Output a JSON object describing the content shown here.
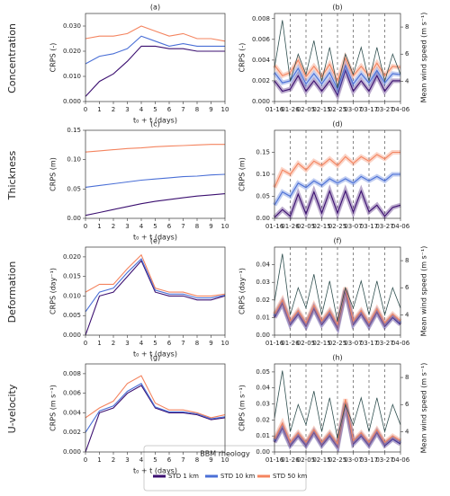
{
  "row_labels": [
    "Concentration",
    "Thickness",
    "Deformation",
    "U-velocity"
  ],
  "legend_title": "BBM rheology",
  "chart_data": [
    {
      "type": "line",
      "title": "(a)",
      "xlabel": "t₀ + t (days)",
      "ylabel": "CRPS (-)",
      "x": [
        0,
        1,
        2,
        3,
        4,
        5,
        6,
        7,
        8,
        9,
        10
      ],
      "xlim": [
        0,
        10
      ],
      "xticks": [
        0,
        1,
        2,
        3,
        4,
        5,
        6,
        7,
        8,
        9,
        10
      ],
      "ylim": [
        0,
        0.035
      ],
      "yticks": [
        {
          "value": 0,
          "label": "0.000"
        },
        {
          "value": 0.01,
          "label": "0.010"
        },
        {
          "value": 0.02,
          "label": "0.020"
        },
        {
          "value": 0.03,
          "label": "0.030"
        }
      ],
      "series": [
        {
          "name": "STD 1 km",
          "color": "#3b0f70",
          "values": [
            0.002,
            0.008,
            0.011,
            0.016,
            0.022,
            0.022,
            0.021,
            0.021,
            0.02,
            0.02,
            0.02
          ]
        },
        {
          "name": "STD 10 km",
          "color": "#4a6fd6",
          "values": [
            0.015,
            0.018,
            0.019,
            0.021,
            0.026,
            0.024,
            0.022,
            0.023,
            0.022,
            0.022,
            0.022
          ]
        },
        {
          "name": "STD 50 km",
          "color": "#f4845f",
          "values": [
            0.025,
            0.026,
            0.026,
            0.027,
            0.03,
            0.028,
            0.026,
            0.027,
            0.025,
            0.025,
            0.024
          ]
        }
      ]
    },
    {
      "type": "line",
      "title": "(b)",
      "ylabel": "CRPS (-)",
      "y2label": "Mean wind speed (m s⁻¹)",
      "x": [
        "01-16",
        "01-21",
        "01-26",
        "01-31",
        "02-05",
        "02-10",
        "02-15",
        "02-20",
        "02-25",
        "03-02",
        "03-07",
        "03-12",
        "03-17",
        "03-22",
        "03-27",
        "04-01",
        "04-06"
      ],
      "xticks": [
        "01-16",
        "01-26",
        "02-05",
        "02-15",
        "02-25",
        "03-07",
        "03-17",
        "03-27",
        "04-06"
      ],
      "ylim": [
        0,
        0.0085
      ],
      "yticks": [
        {
          "value": 0,
          "label": "0.000"
        },
        {
          "value": 0.002,
          "label": "0.002"
        },
        {
          "value": 0.004,
          "label": "0.004"
        },
        {
          "value": 0.006,
          "label": "0.006"
        },
        {
          "value": 0.008,
          "label": "0.008"
        }
      ],
      "y2lim": [
        2.5,
        9
      ],
      "y2ticks": [
        4,
        6,
        8
      ],
      "series": [
        {
          "name": "STD 1 km",
          "color": "#3b0f70",
          "values": [
            0.002,
            0.001,
            0.0012,
            0.0025,
            0.001,
            0.002,
            0.001,
            0.002,
            0.0006,
            0.003,
            0.001,
            0.002,
            0.001,
            0.0025,
            0.001,
            0.002,
            0.002
          ]
        },
        {
          "name": "STD 10 km",
          "color": "#4a6fd6",
          "values": [
            0.0028,
            0.0018,
            0.002,
            0.0032,
            0.0017,
            0.0027,
            0.0017,
            0.0028,
            0.0012,
            0.0035,
            0.0017,
            0.0027,
            0.0018,
            0.003,
            0.0018,
            0.0027,
            0.0026
          ]
        },
        {
          "name": "STD 50 km",
          "color": "#f4845f",
          "values": [
            0.0035,
            0.0025,
            0.0028,
            0.004,
            0.0024,
            0.0034,
            0.0024,
            0.0036,
            0.002,
            0.0042,
            0.0025,
            0.0034,
            0.0025,
            0.0037,
            0.0025,
            0.0034,
            0.0033
          ]
        },
        {
          "color": "#2f4f4f",
          "axis": "y2",
          "values": [
            5,
            8.5,
            4,
            6,
            4.5,
            7,
            4,
            6.5,
            3.5,
            6,
            4.5,
            6.5,
            4,
            6.5,
            4,
            6,
            4.5
          ]
        }
      ]
    },
    {
      "type": "line",
      "title": "(c)",
      "xlabel": "t₀ + t (days)",
      "ylabel": "CRPS (m)",
      "x": [
        0,
        1,
        2,
        3,
        4,
        5,
        6,
        7,
        8,
        9,
        10
      ],
      "xlim": [
        0,
        10
      ],
      "xticks": [
        0,
        1,
        2,
        3,
        4,
        5,
        6,
        7,
        8,
        9,
        10
      ],
      "ylim": [
        0,
        0.15
      ],
      "yticks": [
        {
          "value": 0,
          "label": "0.00"
        },
        {
          "value": 0.05,
          "label": "0.05"
        },
        {
          "value": 0.1,
          "label": "0.10"
        },
        {
          "value": 0.15,
          "label": "0.15"
        }
      ],
      "series": [
        {
          "name": "STD 1 km",
          "color": "#3b0f70",
          "values": [
            0.005,
            0.01,
            0.015,
            0.02,
            0.025,
            0.029,
            0.032,
            0.035,
            0.038,
            0.04,
            0.042
          ]
        },
        {
          "name": "STD 10 km",
          "color": "#4a6fd6",
          "values": [
            0.053,
            0.056,
            0.059,
            0.062,
            0.065,
            0.067,
            0.069,
            0.071,
            0.072,
            0.074,
            0.075
          ]
        },
        {
          "name": "STD 50 km",
          "color": "#f4845f",
          "values": [
            0.113,
            0.115,
            0.117,
            0.119,
            0.12,
            0.122,
            0.123,
            0.124,
            0.125,
            0.126,
            0.126
          ]
        }
      ]
    },
    {
      "type": "line",
      "title": "(d)",
      "ylabel": "CRPS (m)",
      "x": [
        "01-16",
        "01-21",
        "01-26",
        "01-31",
        "02-05",
        "02-10",
        "02-15",
        "02-20",
        "02-25",
        "03-02",
        "03-07",
        "03-12",
        "03-17",
        "03-22",
        "03-27",
        "04-01",
        "04-06"
      ],
      "xticks": [
        "01-16",
        "01-26",
        "02-05",
        "02-15",
        "02-25",
        "03-07",
        "03-17",
        "03-27",
        "04-06"
      ],
      "ylim": [
        0,
        0.2
      ],
      "yticks": [
        {
          "value": 0,
          "label": "0.00"
        },
        {
          "value": 0.05,
          "label": "0.05"
        },
        {
          "value": 0.1,
          "label": "0.10"
        },
        {
          "value": 0.15,
          "label": "0.15"
        }
      ],
      "series": [
        {
          "name": "STD 1 km",
          "color": "#3b0f70",
          "values": [
            0.002,
            0.02,
            0.005,
            0.055,
            0.01,
            0.06,
            0.012,
            0.062,
            0.012,
            0.062,
            0.014,
            0.062,
            0.015,
            0.03,
            0.005,
            0.025,
            0.03
          ]
        },
        {
          "name": "STD 10 km",
          "color": "#4a6fd6",
          "values": [
            0.03,
            0.06,
            0.05,
            0.08,
            0.07,
            0.085,
            0.075,
            0.09,
            0.08,
            0.09,
            0.08,
            0.095,
            0.085,
            0.095,
            0.085,
            0.1,
            0.1
          ]
        },
        {
          "name": "STD 50 km",
          "color": "#f4845f",
          "values": [
            0.07,
            0.11,
            0.1,
            0.125,
            0.11,
            0.13,
            0.12,
            0.135,
            0.12,
            0.14,
            0.125,
            0.14,
            0.13,
            0.145,
            0.135,
            0.15,
            0.15
          ]
        }
      ]
    },
    {
      "type": "line",
      "title": "(e)",
      "xlabel": "t₀ + t (days)",
      "ylabel": "CRPS (day⁻¹)",
      "x": [
        0,
        1,
        2,
        3,
        4,
        5,
        6,
        7,
        8,
        9,
        10
      ],
      "xlim": [
        0,
        10
      ],
      "xticks": [
        0,
        1,
        2,
        3,
        4,
        5,
        6,
        7,
        8,
        9,
        10
      ],
      "ylim": [
        0,
        0.0225
      ],
      "yticks": [
        {
          "value": 0,
          "label": "0.000"
        },
        {
          "value": 0.005,
          "label": "0.005"
        },
        {
          "value": 0.01,
          "label": "0.010"
        },
        {
          "value": 0.015,
          "label": "0.015"
        },
        {
          "value": 0.02,
          "label": "0.020"
        }
      ],
      "series": [
        {
          "name": "STD 1 km",
          "color": "#3b0f70",
          "values": [
            0,
            0.01,
            0.011,
            0.015,
            0.019,
            0.011,
            0.01,
            0.01,
            0.009,
            0.009,
            0.01
          ]
        },
        {
          "name": "STD 10 km",
          "color": "#4a6fd6",
          "values": [
            0.006,
            0.011,
            0.012,
            0.016,
            0.0195,
            0.0115,
            0.0105,
            0.0105,
            0.0095,
            0.0095,
            0.0102
          ]
        },
        {
          "name": "STD 50 km",
          "color": "#f4845f",
          "values": [
            0.011,
            0.013,
            0.013,
            0.017,
            0.0205,
            0.012,
            0.011,
            0.011,
            0.01,
            0.01,
            0.0105
          ]
        }
      ]
    },
    {
      "type": "line",
      "title": "(f)",
      "ylabel": "CRPS (day⁻¹)",
      "y2label": "Mean wind speed (m s⁻¹)",
      "x": [
        "01-16",
        "01-21",
        "01-26",
        "01-31",
        "02-05",
        "02-10",
        "02-15",
        "02-20",
        "02-25",
        "03-02",
        "03-07",
        "03-12",
        "03-17",
        "03-22",
        "03-27",
        "04-01",
        "04-06"
      ],
      "xticks": [
        "01-16",
        "01-26",
        "02-05",
        "02-15",
        "02-25",
        "03-07",
        "03-17",
        "03-27",
        "04-06"
      ],
      "ylim": [
        0,
        0.05
      ],
      "yticks": [
        {
          "value": 0,
          "label": "0.00"
        },
        {
          "value": 0.01,
          "label": "0.01"
        },
        {
          "value": 0.02,
          "label": "0.02"
        },
        {
          "value": 0.03,
          "label": "0.03"
        },
        {
          "value": 0.04,
          "label": "0.04"
        }
      ],
      "y2lim": [
        2.5,
        9
      ],
      "y2ticks": [
        4,
        6,
        8
      ],
      "series": [
        {
          "name": "STD 1 km",
          "color": "#3b0f70",
          "values": [
            0.01,
            0.018,
            0.006,
            0.012,
            0.005,
            0.015,
            0.006,
            0.012,
            0.004,
            0.025,
            0.006,
            0.012,
            0.005,
            0.013,
            0.005,
            0.01,
            0.006
          ]
        },
        {
          "name": "STD 10 km",
          "color": "#4a6fd6",
          "values": [
            0.011,
            0.019,
            0.007,
            0.013,
            0.006,
            0.016,
            0.007,
            0.013,
            0.005,
            0.026,
            0.007,
            0.013,
            0.006,
            0.014,
            0.006,
            0.011,
            0.007
          ]
        },
        {
          "name": "STD 50 km",
          "color": "#f4845f",
          "values": [
            0.012,
            0.02,
            0.008,
            0.014,
            0.007,
            0.017,
            0.008,
            0.014,
            0.006,
            0.027,
            0.008,
            0.014,
            0.007,
            0.015,
            0.007,
            0.012,
            0.008
          ]
        },
        {
          "color": "#2f4f4f",
          "axis": "y2",
          "values": [
            5,
            8.5,
            4,
            6,
            4.5,
            7,
            4,
            6.5,
            3.5,
            6,
            4.5,
            6.5,
            4,
            6.5,
            4,
            6,
            4.5
          ]
        }
      ]
    },
    {
      "type": "line",
      "title": "(g)",
      "xlabel": "t₀ + t (days)",
      "ylabel": "CRPS (m s⁻¹)",
      "x": [
        0,
        1,
        2,
        3,
        4,
        5,
        6,
        7,
        8,
        9,
        10
      ],
      "xlim": [
        0,
        10
      ],
      "xticks": [
        0,
        1,
        2,
        3,
        4,
        5,
        6,
        7,
        8,
        9,
        10
      ],
      "ylim": [
        0,
        0.009
      ],
      "yticks": [
        {
          "value": 0,
          "label": "0.000"
        },
        {
          "value": 0.002,
          "label": "0.002"
        },
        {
          "value": 0.004,
          "label": "0.004"
        },
        {
          "value": 0.006,
          "label": "0.006"
        },
        {
          "value": 0.008,
          "label": "0.008"
        }
      ],
      "series": [
        {
          "name": "STD 1 km",
          "color": "#3b0f70",
          "values": [
            0,
            0.004,
            0.0045,
            0.006,
            0.0068,
            0.0045,
            0.004,
            0.004,
            0.0038,
            0.0033,
            0.0035
          ]
        },
        {
          "name": "STD 10 km",
          "color": "#4a6fd6",
          "values": [
            0.002,
            0.0042,
            0.0047,
            0.0062,
            0.007,
            0.0046,
            0.0041,
            0.0041,
            0.0039,
            0.0034,
            0.0036
          ]
        },
        {
          "name": "STD 50 km",
          "color": "#f4845f",
          "values": [
            0.0035,
            0.0045,
            0.0052,
            0.007,
            0.0078,
            0.005,
            0.0043,
            0.0043,
            0.004,
            0.0035,
            0.0038
          ]
        }
      ]
    },
    {
      "type": "line",
      "title": "(h)",
      "ylabel": "CRPS (m s⁻¹)",
      "y2label": "Mean wind speed (m s⁻¹)",
      "x": [
        "01-16",
        "01-21",
        "01-26",
        "01-31",
        "02-05",
        "02-10",
        "02-15",
        "02-20",
        "02-25",
        "03-02",
        "03-07",
        "03-12",
        "03-17",
        "03-22",
        "03-27",
        "04-01",
        "04-06"
      ],
      "xticks": [
        "01-16",
        "01-26",
        "02-05",
        "02-15",
        "02-25",
        "03-07",
        "03-17",
        "03-27",
        "04-06"
      ],
      "ylim": [
        0,
        0.055
      ],
      "yticks": [
        {
          "value": 0,
          "label": "0.00"
        },
        {
          "value": 0.01,
          "label": "0.01"
        },
        {
          "value": 0.02,
          "label": "0.02"
        },
        {
          "value": 0.03,
          "label": "0.03"
        },
        {
          "value": 0.04,
          "label": "0.04"
        },
        {
          "value": 0.05,
          "label": "0.05"
        }
      ],
      "y2lim": [
        2.5,
        9
      ],
      "y2ticks": [
        4,
        6,
        8
      ],
      "series": [
        {
          "name": "STD 1 km",
          "color": "#3b0f70",
          "values": [
            0.006,
            0.015,
            0.004,
            0.01,
            0.004,
            0.012,
            0.004,
            0.01,
            0.003,
            0.03,
            0.005,
            0.01,
            0.004,
            0.012,
            0.004,
            0.008,
            0.005
          ]
        },
        {
          "name": "STD 10 km",
          "color": "#4a6fd6",
          "values": [
            0.007,
            0.016,
            0.005,
            0.011,
            0.005,
            0.013,
            0.005,
            0.011,
            0.004,
            0.031,
            0.006,
            0.011,
            0.005,
            0.013,
            0.005,
            0.009,
            0.006
          ]
        },
        {
          "name": "STD 50 km",
          "color": "#f4845f",
          "values": [
            0.008,
            0.018,
            0.006,
            0.012,
            0.006,
            0.014,
            0.006,
            0.012,
            0.005,
            0.033,
            0.007,
            0.012,
            0.006,
            0.014,
            0.006,
            0.01,
            0.007
          ]
        },
        {
          "color": "#2f4f4f",
          "axis": "y2",
          "values": [
            5,
            8.5,
            4,
            6,
            4.5,
            7,
            4,
            6.5,
            3.5,
            6,
            4.5,
            6.5,
            4,
            6.5,
            4,
            6,
            4.5
          ]
        }
      ]
    }
  ]
}
